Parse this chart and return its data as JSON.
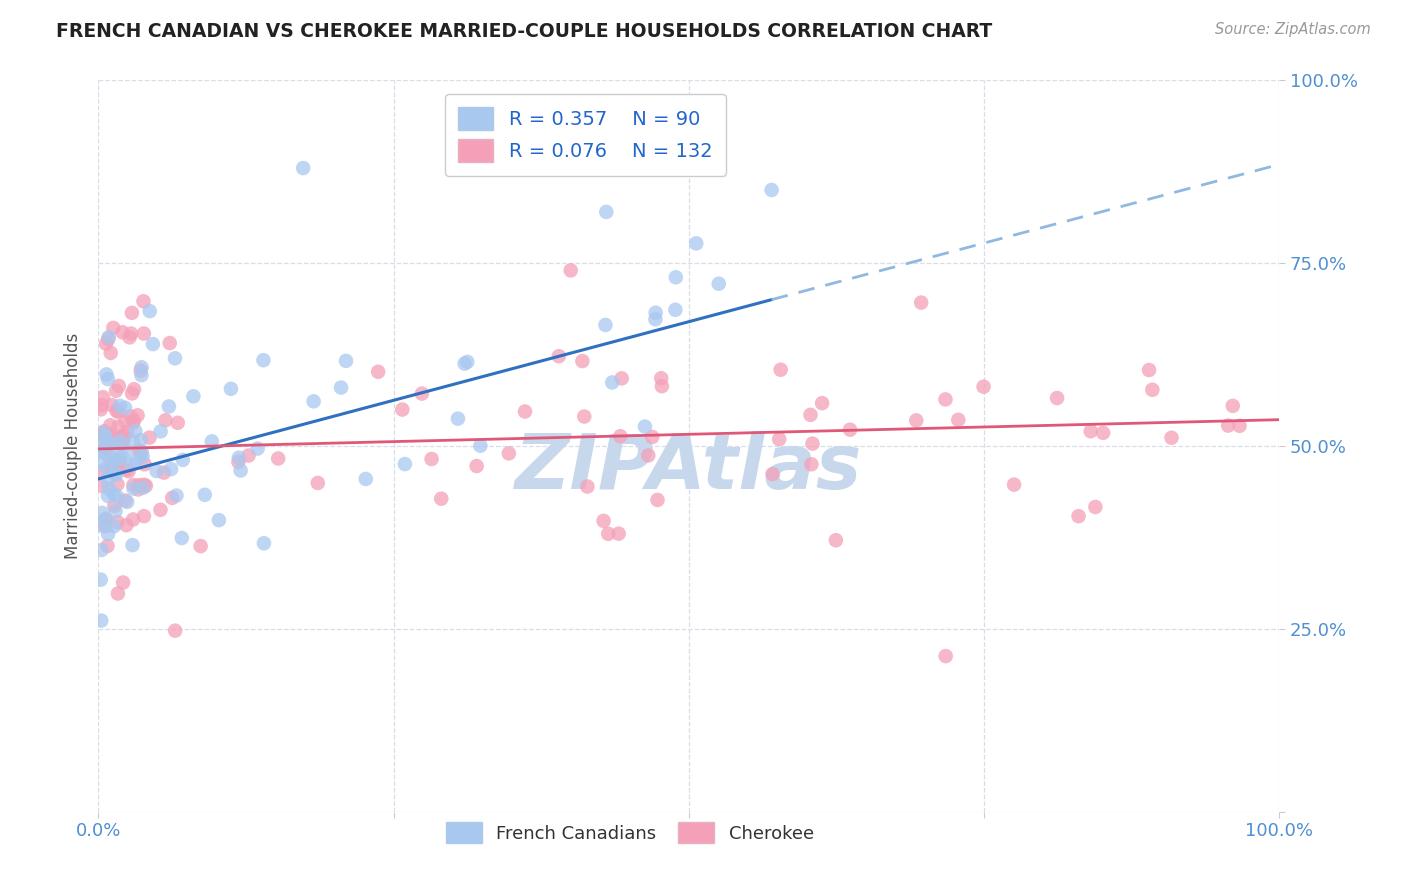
{
  "title": "FRENCH CANADIAN VS CHEROKEE MARRIED-COUPLE HOUSEHOLDS CORRELATION CHART",
  "source": "Source: ZipAtlas.com",
  "ylabel": "Married-couple Households",
  "blue_color": "#A8C8F0",
  "pink_color": "#F4A0B8",
  "trend_blue": "#3070C0",
  "trend_pink": "#E05878",
  "trend_dash": "#90B8E0",
  "bg_color": "#FFFFFF",
  "grid_color": "#D8DDE8",
  "title_color": "#222222",
  "axis_label_color": "#5090D0",
  "watermark_color": "#C8D8EC",
  "legend_blue_r": "0.357",
  "legend_blue_n": "90",
  "legend_pink_r": "0.076",
  "legend_pink_n": "132"
}
